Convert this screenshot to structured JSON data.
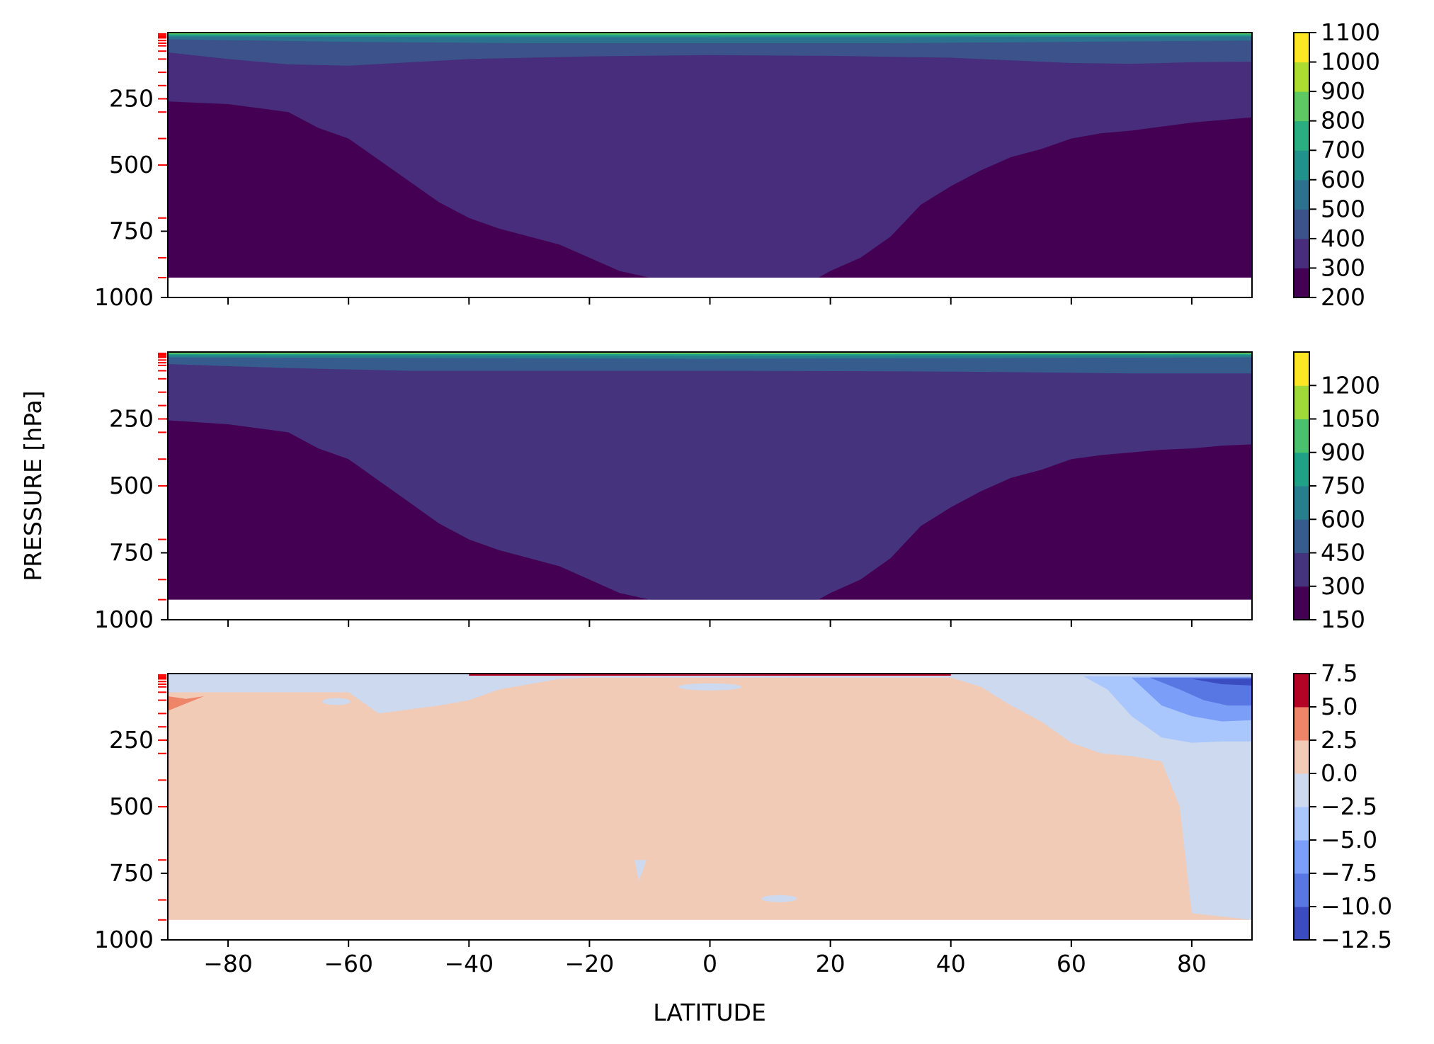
{
  "figure": {
    "ylabel": "PRESSURE [hPa]",
    "xlabel": "LATITUDE"
  },
  "chart_data": [
    {
      "type": "heatmap",
      "panel": "top",
      "title": "",
      "xlabel": "",
      "ylabel": "PRESSURE [hPa]",
      "xlim": [
        -90,
        90
      ],
      "ylim": [
        1000,
        0
      ],
      "x_ticks": [
        -80,
        -60,
        -40,
        -20,
        0,
        20,
        40,
        60,
        80
      ],
      "y_ticks": [
        250,
        500,
        750,
        1000
      ],
      "colormap": "viridis",
      "colorbar_levels": [
        200,
        300,
        400,
        500,
        600,
        700,
        800,
        900,
        1000,
        1100
      ],
      "colorbar_colors": [
        "#440154",
        "#472d7b",
        "#3b528b",
        "#2c728e",
        "#21918c",
        "#28ae80",
        "#5ec962",
        "#addc30",
        "#fde725"
      ],
      "data_extent_pressure": [
        0,
        925
      ],
      "boundaries": [
        {
          "level": 300,
          "lat": [
            -90,
            -80,
            -70,
            -65,
            -60,
            -55,
            -50,
            -45,
            -40,
            -35,
            -30,
            -25,
            -20,
            -15,
            -10,
            0,
            10,
            18,
            20,
            25,
            30,
            35,
            40,
            45,
            50,
            55,
            60,
            65,
            70,
            75,
            80,
            85,
            90
          ],
          "pressure": [
            260,
            270,
            300,
            360,
            400,
            480,
            560,
            640,
            700,
            740,
            770,
            800,
            850,
            900,
            925,
            925,
            925,
            925,
            900,
            850,
            770,
            650,
            580,
            520,
            470,
            440,
            400,
            380,
            370,
            355,
            340,
            330,
            320
          ]
        },
        {
          "level": 400,
          "lat": [
            -90,
            -80,
            -70,
            -60,
            -40,
            -20,
            0,
            20,
            40,
            60,
            70,
            80,
            90
          ],
          "pressure": [
            75,
            100,
            120,
            125,
            100,
            90,
            85,
            88,
            95,
            115,
            118,
            112,
            110
          ]
        },
        {
          "level": 500,
          "lat": [
            -90,
            -60,
            -30,
            0,
            30,
            60,
            90
          ],
          "pressure": [
            25,
            35,
            40,
            40,
            40,
            35,
            30
          ]
        },
        {
          "level": 600,
          "lat": [
            -90,
            0,
            90
          ],
          "pressure": [
            15,
            18,
            15
          ]
        },
        {
          "level": 700,
          "lat": [
            -90,
            0,
            90
          ],
          "pressure": [
            10,
            12,
            10
          ]
        },
        {
          "level": 800,
          "lat": [
            -90,
            0,
            90
          ],
          "pressure": [
            6,
            7,
            6
          ]
        }
      ],
      "model_levels_marked": [
        5,
        10,
        15,
        20,
        30,
        40,
        50,
        70,
        100,
        150,
        200,
        250,
        300,
        400,
        500,
        700,
        850,
        925
      ]
    },
    {
      "type": "heatmap",
      "panel": "middle",
      "title": "",
      "xlabel": "",
      "ylabel": "PRESSURE [hPa]",
      "xlim": [
        -90,
        90
      ],
      "ylim": [
        1000,
        0
      ],
      "x_ticks": [
        -80,
        -60,
        -40,
        -20,
        0,
        20,
        40,
        60,
        80
      ],
      "y_ticks": [
        250,
        500,
        750,
        1000
      ],
      "colormap": "viridis",
      "colorbar_levels": [
        150,
        300,
        450,
        600,
        750,
        900,
        1050,
        1200
      ],
      "colorbar_colors": [
        "#440154",
        "#46337e",
        "#365c8d",
        "#277f8e",
        "#1fa187",
        "#4ac16d",
        "#a0da39",
        "#fde725"
      ],
      "data_extent_pressure": [
        0,
        925
      ],
      "boundaries": [
        {
          "level": 300,
          "lat": [
            -90,
            -80,
            -70,
            -65,
            -60,
            -55,
            -50,
            -45,
            -40,
            -35,
            -30,
            -25,
            -20,
            -15,
            -10,
            0,
            10,
            18,
            20,
            25,
            30,
            35,
            40,
            45,
            50,
            55,
            60,
            65,
            70,
            75,
            80,
            85,
            90
          ],
          "pressure": [
            255,
            270,
            300,
            360,
            400,
            480,
            560,
            640,
            700,
            740,
            770,
            800,
            850,
            900,
            925,
            925,
            925,
            925,
            900,
            850,
            770,
            650,
            580,
            520,
            470,
            440,
            400,
            385,
            375,
            365,
            360,
            350,
            345
          ]
        },
        {
          "level": 450,
          "lat": [
            -90,
            -70,
            -50,
            -30,
            0,
            30,
            50,
            70,
            90
          ],
          "pressure": [
            45,
            60,
            70,
            70,
            70,
            72,
            75,
            80,
            80
          ]
        },
        {
          "level": 600,
          "lat": [
            -90,
            0,
            90
          ],
          "pressure": [
            20,
            25,
            20
          ]
        },
        {
          "level": 750,
          "lat": [
            -90,
            0,
            90
          ],
          "pressure": [
            12,
            14,
            12
          ]
        },
        {
          "level": 900,
          "lat": [
            -90,
            0,
            90
          ],
          "pressure": [
            7,
            8,
            7
          ]
        },
        {
          "level": 1050,
          "lat": [
            -90,
            0,
            90
          ],
          "pressure": [
            4,
            4,
            4
          ]
        }
      ],
      "model_levels_marked": [
        5,
        10,
        15,
        20,
        30,
        40,
        50,
        70,
        100,
        150,
        200,
        250,
        300,
        400,
        500,
        700,
        850,
        925
      ]
    },
    {
      "type": "heatmap",
      "panel": "bottom",
      "title": "",
      "xlabel": "LATITUDE",
      "ylabel": "PRESSURE [hPa]",
      "xlim": [
        -90,
        90
      ],
      "ylim": [
        1000,
        0
      ],
      "x_ticks": [
        -80,
        -60,
        -40,
        -20,
        0,
        20,
        40,
        60,
        80
      ],
      "y_ticks": [
        250,
        500,
        750,
        1000
      ],
      "colormap": "coolwarm",
      "colorbar_levels": [
        -12.5,
        -10.0,
        -7.5,
        -5.0,
        -2.5,
        0.0,
        2.5,
        5.0,
        7.5
      ],
      "colorbar_tick_labels": [
        "−12.5",
        "−10.0",
        "−7.5",
        "−5.0",
        "−2.5",
        "0.0",
        "2.5",
        "5.0",
        "7.5"
      ],
      "colorbar_colors": [
        "#3b4cc0",
        "#5977e3",
        "#7b9ff9",
        "#aac7fd",
        "#ccd9ee",
        "#f2cbb7",
        "#ee8468",
        "#b40426"
      ],
      "data_extent_pressure": [
        0,
        925
      ],
      "background_band": "0.0 to 2.5",
      "regions": [
        {
          "band": "-2.5 to 0.0",
          "lat": [
            -90,
            -60,
            -55,
            -45,
            -40,
            -35,
            -30,
            -25,
            -20,
            0,
            20,
            40,
            45,
            50,
            55,
            60,
            65,
            70,
            75,
            78,
            80,
            90,
            90,
            -90
          ],
          "pressure": [
            70,
            70,
            150,
            120,
            100,
            60,
            40,
            20,
            15,
            15,
            15,
            15,
            50,
            120,
            180,
            260,
            300,
            310,
            330,
            500,
            900,
            925,
            0,
            0
          ]
        },
        {
          "band": "-5.0 to -2.5",
          "lat": [
            62,
            66,
            70,
            75,
            80,
            85,
            90,
            90,
            62
          ],
          "pressure": [
            10,
            60,
            160,
            240,
            260,
            255,
            255,
            10,
            10
          ]
        },
        {
          "band": "-7.5 to -5.0",
          "lat": [
            70,
            75,
            80,
            85,
            90,
            90,
            70
          ],
          "pressure": [
            15,
            120,
            160,
            180,
            175,
            15,
            15
          ]
        },
        {
          "band": "-10.0 to -7.5",
          "lat": [
            73,
            78,
            82,
            86,
            90,
            90,
            73
          ],
          "pressure": [
            15,
            60,
            100,
            120,
            120,
            15,
            15
          ]
        },
        {
          "band": "-12.5 to -10.0",
          "lat": [
            80,
            85,
            90,
            90,
            80
          ],
          "pressure": [
            20,
            40,
            45,
            20,
            20
          ]
        },
        {
          "band": "2.5 to 5.0",
          "lat": [
            -90,
            -87,
            -84,
            -90
          ],
          "pressure": [
            85,
            95,
            85,
            140
          ]
        },
        {
          "band": "5.0 to 7.5",
          "lat": [
            -40,
            0,
            40,
            40,
            -40
          ],
          "pressure": [
            2,
            3,
            2,
            8,
            8
          ]
        }
      ],
      "model_levels_marked": [
        5,
        10,
        15,
        20,
        30,
        40,
        50,
        70,
        100,
        150,
        200,
        250,
        300,
        400,
        500,
        700,
        850,
        925
      ]
    }
  ]
}
